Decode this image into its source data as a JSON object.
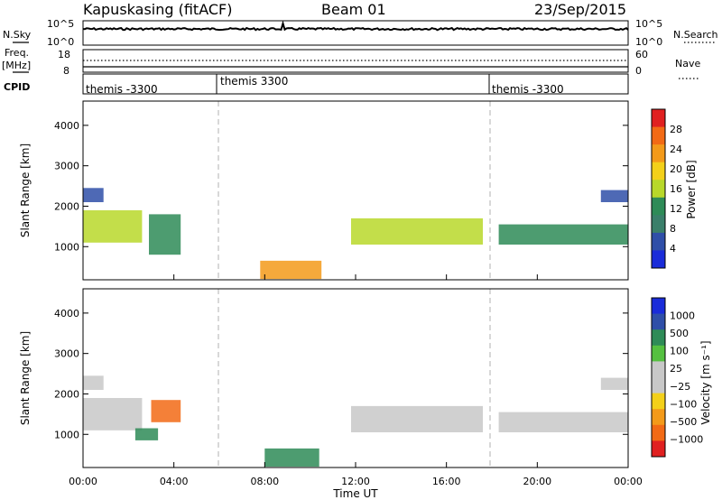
{
  "header": {
    "station": "Kapuskasing (fitACF)",
    "beam": "Beam 01",
    "date": "23/Sep/2015"
  },
  "panels": {
    "nsky_label": "N.Sky",
    "nsearch_label": "N.Search",
    "nsky_ticks": [
      "10^5",
      "10^0"
    ],
    "freq_label": "Freq.",
    "freq_unit": "[MHz]",
    "freq_ticks": [
      "18",
      "8"
    ],
    "nave_label": "Nave",
    "nave_ticks": [
      "60",
      "0"
    ],
    "cpid_label": "CPID",
    "cpid_entries": [
      "themis -3300",
      "themis 3300",
      "themis -3300"
    ]
  },
  "colors": {
    "power": [
      "#1a2cd9",
      "#2f4fa8",
      "#3a7f6a",
      "#2e8b57",
      "#b8d82a",
      "#f3d01a",
      "#f39a1a",
      "#f26a15",
      "#e02020"
    ],
    "velocity": [
      "#e02020",
      "#f26a15",
      "#f39a1a",
      "#f3d01a",
      "#c8c8c8",
      "#c8c8c8",
      "#55c040",
      "#2e8b57",
      "#2f4fa8",
      "#1a2cd9"
    ],
    "ground_scatter": "#c8c8c8"
  },
  "chart_data": [
    {
      "type": "heatmap",
      "title": "",
      "xlabel": "Time UT",
      "ylabel": "Slant Range [km]",
      "x_ticks": [
        "00:00",
        "04:00",
        "08:00",
        "12:00",
        "16:00",
        "20:00",
        "00:00"
      ],
      "y_ticks": [
        "1000",
        "2000",
        "3000",
        "4000"
      ],
      "xlim_hours": [
        0,
        24
      ],
      "ylim": [
        180,
        4600
      ],
      "colorbar": {
        "label": "Power [dB]",
        "ticks": [
          "4",
          "8",
          "12",
          "16",
          "20",
          "24",
          "28"
        ],
        "range": [
          0,
          30
        ]
      },
      "regions": [
        {
          "t0": 0.0,
          "t1": 2.6,
          "r0": 1100,
          "r1": 1900,
          "value": 16
        },
        {
          "t0": 0.0,
          "t1": 0.9,
          "r0": 2100,
          "r1": 2450,
          "value": 6
        },
        {
          "t0": 2.9,
          "t1": 4.3,
          "r0": 800,
          "r1": 1800,
          "value": 10
        },
        {
          "t0": 7.8,
          "t1": 10.5,
          "r0": 200,
          "r1": 650,
          "value": 22
        },
        {
          "t0": 11.8,
          "t1": 17.6,
          "r0": 1050,
          "r1": 1700,
          "value": 14
        },
        {
          "t0": 18.3,
          "t1": 24.0,
          "r0": 1050,
          "r1": 1550,
          "value": 12
        },
        {
          "t0": 22.8,
          "t1": 24.0,
          "r0": 2100,
          "r1": 2400,
          "value": 5
        }
      ]
    },
    {
      "type": "heatmap",
      "title": "",
      "xlabel": "Time UT",
      "ylabel": "Slant Range [km]",
      "x_ticks": [
        "00:00",
        "04:00",
        "08:00",
        "12:00",
        "16:00",
        "20:00",
        "00:00"
      ],
      "y_ticks": [
        "1000",
        "2000",
        "3000",
        "4000"
      ],
      "xlim_hours": [
        0,
        24
      ],
      "ylim": [
        180,
        4600
      ],
      "colorbar": {
        "label": "Velocity [m s⁻¹]",
        "ticks": [
          "1000",
          "500",
          "100",
          "25",
          "−25",
          "−100",
          "−500",
          "−1000"
        ],
        "range": [
          -1000,
          1000
        ]
      },
      "regions": [
        {
          "t0": 0.0,
          "t1": 2.6,
          "r0": 1100,
          "r1": 1900,
          "value": 0
        },
        {
          "t0": 0.0,
          "t1": 0.9,
          "r0": 2100,
          "r1": 2450,
          "value": 0
        },
        {
          "t0": 3.0,
          "t1": 4.3,
          "r0": 1300,
          "r1": 1850,
          "value": -300
        },
        {
          "t0": 2.3,
          "t1": 3.3,
          "r0": 850,
          "r1": 1150,
          "value": 150
        },
        {
          "t0": 8.0,
          "t1": 10.4,
          "r0": 200,
          "r1": 650,
          "value": 120
        },
        {
          "t0": 11.8,
          "t1": 17.6,
          "r0": 1050,
          "r1": 1700,
          "value": 0
        },
        {
          "t0": 18.3,
          "t1": 24.0,
          "r0": 1050,
          "r1": 1550,
          "value": 0
        },
        {
          "t0": 22.8,
          "t1": 24.0,
          "r0": 2100,
          "r1": 2400,
          "value": 0
        }
      ]
    }
  ]
}
